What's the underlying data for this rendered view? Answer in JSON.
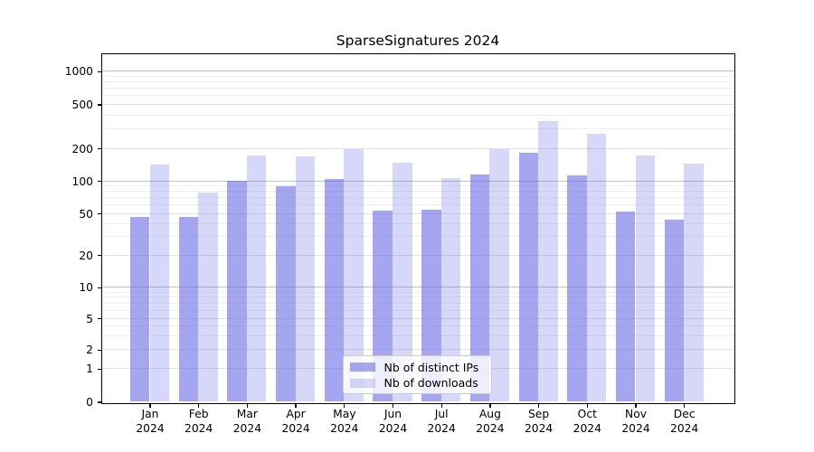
{
  "chart_data": {
    "type": "bar",
    "title": "SparseSignatures 2024",
    "categories": [
      {
        "month": "Jan",
        "year": "2024"
      },
      {
        "month": "Feb",
        "year": "2024"
      },
      {
        "month": "Mar",
        "year": "2024"
      },
      {
        "month": "Apr",
        "year": "2024"
      },
      {
        "month": "May",
        "year": "2024"
      },
      {
        "month": "Jun",
        "year": "2024"
      },
      {
        "month": "Jul",
        "year": "2024"
      },
      {
        "month": "Aug",
        "year": "2024"
      },
      {
        "month": "Sep",
        "year": "2024"
      },
      {
        "month": "Oct",
        "year": "2024"
      },
      {
        "month": "Nov",
        "year": "2024"
      },
      {
        "month": "Dec",
        "year": "2024"
      }
    ],
    "series": [
      {
        "name": "Nb of distinct IPs",
        "color_hex": "#a6a6ef",
        "fill": "rgba(102,102,230,0.58)",
        "values": [
          46,
          46,
          100,
          89,
          104,
          53,
          54,
          114,
          184,
          112,
          52,
          44
        ]
      },
      {
        "name": "Nb of downloads",
        "color_hex": "#d8d8f6",
        "fill": "rgba(102,102,230,0.26)",
        "values": [
          141,
          78,
          172,
          170,
          196,
          147,
          106,
          196,
          355,
          272,
          172,
          146
        ]
      }
    ],
    "y_axis": {
      "scale": "symlog",
      "tick_values": [
        0,
        1,
        2,
        5,
        10,
        20,
        50,
        100,
        200,
        500,
        1000
      ],
      "top_value": 1450
    },
    "x_axis": {
      "label": ""
    },
    "grid": true,
    "legend_position": "lower center"
  }
}
